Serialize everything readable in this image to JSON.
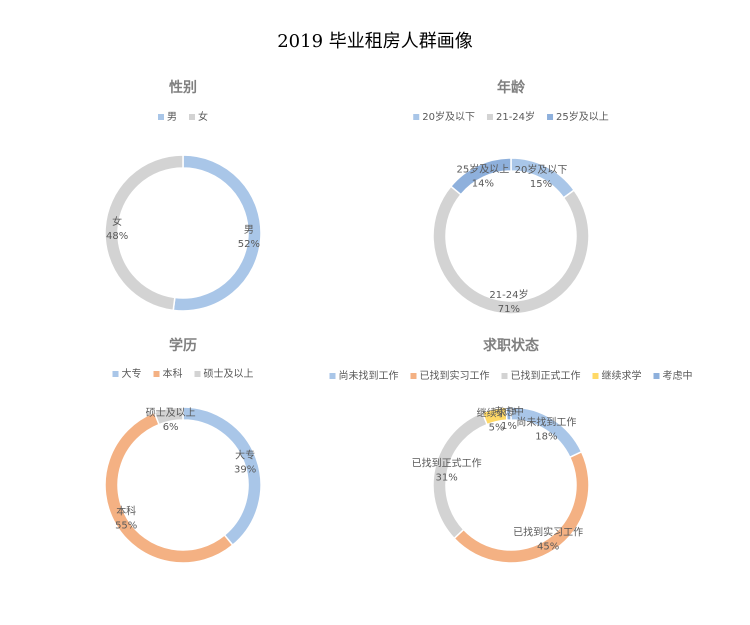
{
  "title": "2019 毕业租房人群画像",
  "chart_data": [
    {
      "type": "donut",
      "title": "性别",
      "categories": [
        "男",
        "女"
      ],
      "values": [
        52,
        48
      ],
      "value_labels": [
        "52%",
        "48%"
      ],
      "colors": [
        "#a9c6e8",
        "#d3d3d3"
      ]
    },
    {
      "type": "donut",
      "title": "年龄",
      "categories": [
        "20岁及以下",
        "21-24岁",
        "25岁及以上"
      ],
      "values": [
        15,
        71,
        14
      ],
      "value_labels": [
        "15%",
        "71%",
        "14%"
      ],
      "colors": [
        "#a9c6e8",
        "#d3d3d3",
        "#8eb0dc"
      ]
    },
    {
      "type": "donut",
      "title": "学历",
      "categories": [
        "大专",
        "本科",
        "硕士及以上"
      ],
      "values": [
        39,
        55,
        6
      ],
      "value_labels": [
        "39%",
        "55%",
        "6%"
      ],
      "colors": [
        "#a9c6e8",
        "#f4b183",
        "#d3d3d3"
      ]
    },
    {
      "type": "donut",
      "title": "求职状态",
      "categories": [
        "尚未找到工作",
        "已找到实习工作",
        "已找到正式工作",
        "继续求学",
        "考虑中"
      ],
      "values": [
        18,
        45,
        31,
        5,
        1
      ],
      "value_labels": [
        "18%",
        "45%",
        "31%",
        "5%",
        "1%"
      ],
      "colors": [
        "#a9c6e8",
        "#f4b183",
        "#d3d3d3",
        "#ffd966",
        "#8eb0dc"
      ]
    }
  ]
}
